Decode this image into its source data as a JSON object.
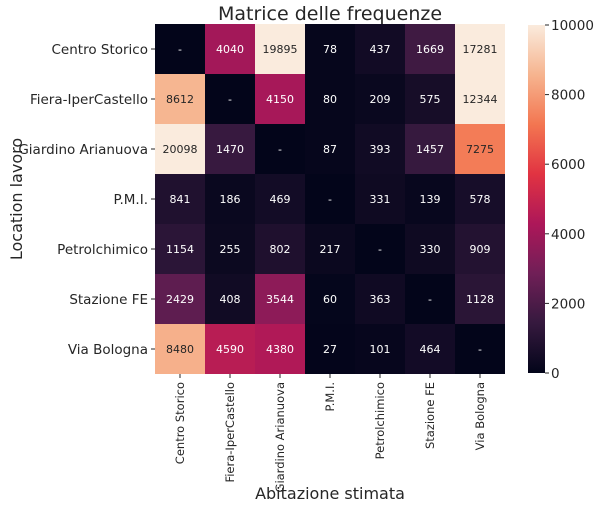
{
  "chart_data": {
    "type": "heatmap",
    "title": "Matrice delle frequenze",
    "xlabel": "Abitazione stimata",
    "ylabel": "Location lavoro",
    "x_categories": [
      "Centro Storico",
      "Fiera-IperCastello",
      "Giardino Arianuova",
      "P.M.I.",
      "Petrolchimico",
      "Stazione FE",
      "Via Bologna"
    ],
    "y_categories": [
      "Centro Storico",
      "Fiera-IperCastello",
      "Giardino Arianuova",
      "P.M.I.",
      "Petrolchimico",
      "Stazione FE",
      "Via Bologna"
    ],
    "values": [
      [
        null,
        4040,
        19895,
        78,
        437,
        1669,
        17281
      ],
      [
        8612,
        null,
        4150,
        80,
        209,
        575,
        12344
      ],
      [
        20098,
        1470,
        null,
        87,
        393,
        1457,
        7275
      ],
      [
        841,
        186,
        469,
        null,
        331,
        139,
        578
      ],
      [
        1154,
        255,
        802,
        217,
        null,
        330,
        909
      ],
      [
        2429,
        408,
        3544,
        60,
        363,
        null,
        1128
      ],
      [
        8480,
        4590,
        4380,
        27,
        101,
        464,
        null
      ]
    ],
    "missing_label": "-",
    "colorbar": {
      "range": [
        0,
        10000
      ],
      "ticks": [
        "0",
        "2000",
        "4000",
        "6000",
        "8000",
        "10000"
      ],
      "colormap": [
        "#03051a",
        "#35193e",
        "#701f57",
        "#ad1759",
        "#e13342",
        "#f37651",
        "#f6b48f",
        "#faebdd"
      ]
    },
    "grid": false
  }
}
